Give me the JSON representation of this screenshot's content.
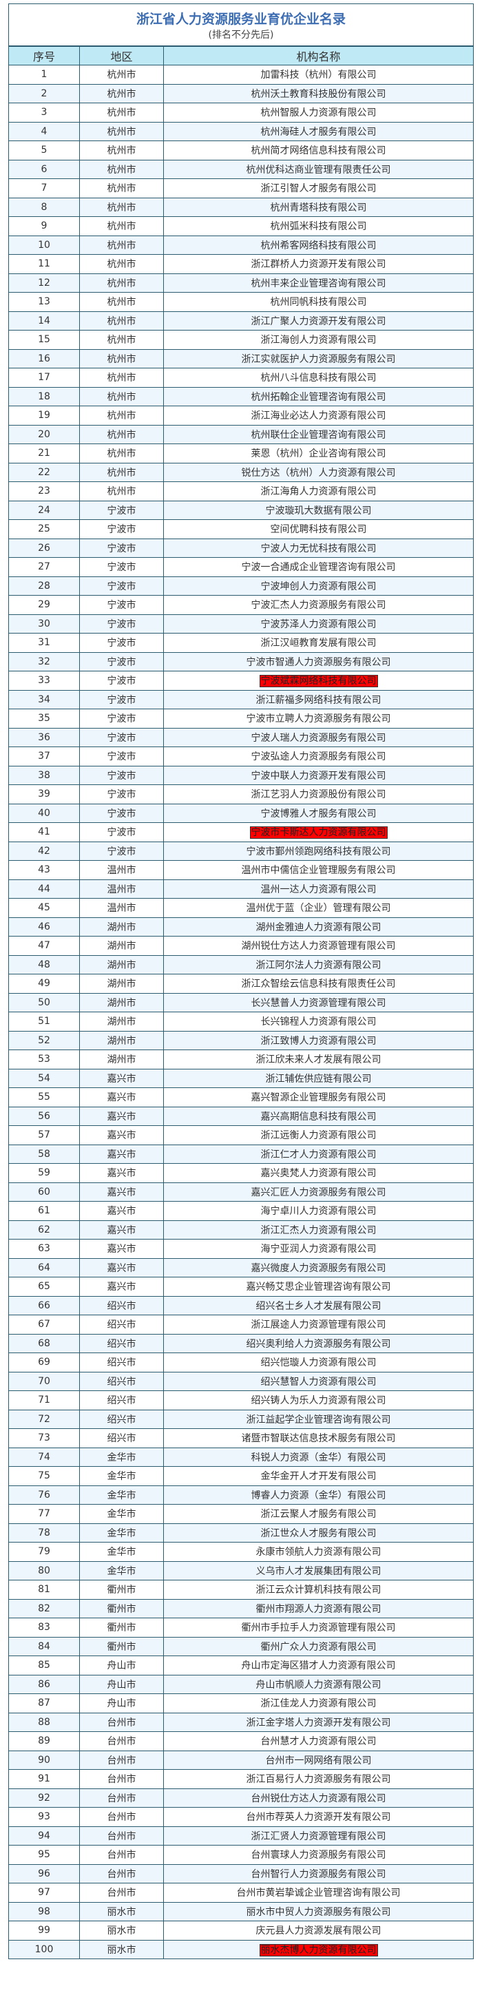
{
  "title": "浙江省人力资源服务业育优企业名录",
  "subtitle": "(排名不分先后)",
  "columns": [
    "序号",
    "地区",
    "机构名称"
  ],
  "colors": {
    "title": "#3c6db3",
    "header_bg": "#bfe9f5",
    "stripe_bg": "#eef6fd",
    "border": "#2b5b6e",
    "highlight": "#ff0000"
  },
  "highlighted_rows": [
    33,
    41,
    100
  ],
  "rows": [
    [
      "1",
      "杭州市",
      "加雷科技（杭州）有限公司"
    ],
    [
      "2",
      "杭州市",
      "杭州沃土教育科技股份有限公司"
    ],
    [
      "3",
      "杭州市",
      "杭州智服人力资源有限公司"
    ],
    [
      "4",
      "杭州市",
      "杭州海硅人才服务有限公司"
    ],
    [
      "5",
      "杭州市",
      "杭州简才网络信息科技有限公司"
    ],
    [
      "6",
      "杭州市",
      "杭州优科达商业管理有限责任公司"
    ],
    [
      "7",
      "杭州市",
      "浙江引智人才服务有限公司"
    ],
    [
      "8",
      "杭州市",
      "杭州青塔科技有限公司"
    ],
    [
      "9",
      "杭州市",
      "杭州弧米科技有限公司"
    ],
    [
      "10",
      "杭州市",
      "杭州希客网络科技有限公司"
    ],
    [
      "11",
      "杭州市",
      "浙江群桥人力资源开发有限公司"
    ],
    [
      "12",
      "杭州市",
      "杭州丰来企业管理咨询有限公司"
    ],
    [
      "13",
      "杭州市",
      "杭州同帆科技有限公司"
    ],
    [
      "14",
      "杭州市",
      "浙江广聚人力资源开发有限公司"
    ],
    [
      "15",
      "杭州市",
      "浙江海创人力资源有限公司"
    ],
    [
      "16",
      "杭州市",
      "浙江实就医护人力资源服务有限公司"
    ],
    [
      "17",
      "杭州市",
      "杭州八斗信息科技有限公司"
    ],
    [
      "18",
      "杭州市",
      "杭州拓翰企业管理咨询有限公司"
    ],
    [
      "19",
      "杭州市",
      "浙江海业必达人力资源有限公司"
    ],
    [
      "20",
      "杭州市",
      "杭州联仕企业管理咨询有限公司"
    ],
    [
      "21",
      "杭州市",
      "莱恩（杭州）企业咨询有限公司"
    ],
    [
      "22",
      "杭州市",
      "锐仕方达（杭州）人力资源有限公司"
    ],
    [
      "23",
      "杭州市",
      "浙江海角人力资源有限公司"
    ],
    [
      "24",
      "宁波市",
      "宁波璇玑大数据有限公司"
    ],
    [
      "25",
      "宁波市",
      "空间优聘科技有限公司"
    ],
    [
      "26",
      "宁波市",
      "宁波人力无忧科技有限公司"
    ],
    [
      "27",
      "宁波市",
      "宁波一合通成企业管理咨询有限公司"
    ],
    [
      "28",
      "宁波市",
      "宁波坤创人力资源有限公司"
    ],
    [
      "29",
      "宁波市",
      "宁波汇杰人力资源服务有限公司"
    ],
    [
      "30",
      "宁波市",
      "宁波苏泽人力资源有限公司"
    ],
    [
      "31",
      "宁波市",
      "浙江汉峘教育发展有限公司"
    ],
    [
      "32",
      "宁波市",
      "宁波市智通人力资源服务有限公司"
    ],
    [
      "33",
      "宁波市",
      "宁波斌霖网络科技有限公司"
    ],
    [
      "34",
      "宁波市",
      "浙江薪福多网络科技有限公司"
    ],
    [
      "35",
      "宁波市",
      "宁波市立聘人力资源服务有限公司"
    ],
    [
      "36",
      "宁波市",
      "宁波人瑞人力资源服务有限公司"
    ],
    [
      "37",
      "宁波市",
      "宁波弘途人力资源服务有限公司"
    ],
    [
      "38",
      "宁波市",
      "宁波中联人力资源开发有限公司"
    ],
    [
      "39",
      "宁波市",
      "浙江艺羽人力资源股份有限公司"
    ],
    [
      "40",
      "宁波市",
      "宁波博雅人才服务有限公司"
    ],
    [
      "41",
      "宁波市",
      "宁波市卡斯达人力资源有限公司"
    ],
    [
      "42",
      "宁波市",
      "宁波市鄞州领跑网络科技有限公司"
    ],
    [
      "43",
      "温州市",
      "温州市中儒信企业管理服务有限公司"
    ],
    [
      "44",
      "温州市",
      "温州一达人力资源有限公司"
    ],
    [
      "45",
      "温州市",
      "温州优于蓝（企业）管理有限公司"
    ],
    [
      "46",
      "湖州市",
      "湖州金雅迪人力资源有限公司"
    ],
    [
      "47",
      "湖州市",
      "湖州锐仕方达人力资源管理有限公司"
    ],
    [
      "48",
      "湖州市",
      "浙江阿尔法人力资源有限公司"
    ],
    [
      "49",
      "湖州市",
      "浙江众智绘云信息科技有限责任公司"
    ],
    [
      "50",
      "湖州市",
      "长兴慧普人力资源管理有限公司"
    ],
    [
      "51",
      "湖州市",
      "长兴锦程人力资源有限公司"
    ],
    [
      "52",
      "湖州市",
      "浙江致博人力资源有限公司"
    ],
    [
      "53",
      "湖州市",
      "浙江欣未来人才发展有限公司"
    ],
    [
      "54",
      "嘉兴市",
      "浙江辅佐供应链有限公司"
    ],
    [
      "55",
      "嘉兴市",
      "嘉兴智源企业管理服务有限公司"
    ],
    [
      "56",
      "嘉兴市",
      "嘉兴高期信息科技有限公司"
    ],
    [
      "57",
      "嘉兴市",
      "浙江远衡人力资源有限公司"
    ],
    [
      "58",
      "嘉兴市",
      "浙江仁才人力资源有限公司"
    ],
    [
      "59",
      "嘉兴市",
      "嘉兴奥梵人力资源有限公司"
    ],
    [
      "60",
      "嘉兴市",
      "嘉兴汇匠人力资源服务有限公司"
    ],
    [
      "61",
      "嘉兴市",
      "海宁卓川人力资源有限公司"
    ],
    [
      "62",
      "嘉兴市",
      "浙江汇杰人力资源有限公司"
    ],
    [
      "63",
      "嘉兴市",
      "海宁亚润人力资源有限公司"
    ],
    [
      "64",
      "嘉兴市",
      "嘉兴微度人力资源服务有限公司"
    ],
    [
      "65",
      "嘉兴市",
      "嘉兴畅艾思企业管理咨询有限公司"
    ],
    [
      "66",
      "绍兴市",
      "绍兴名士乡人才发展有限公司"
    ],
    [
      "67",
      "绍兴市",
      "浙江展途人力资源管理有限公司"
    ],
    [
      "68",
      "绍兴市",
      "绍兴奥利给人力资源服务有限公司"
    ],
    [
      "69",
      "绍兴市",
      "绍兴恺璇人力资源有限公司"
    ],
    [
      "70",
      "绍兴市",
      "绍兴慧智人力资源有限公司"
    ],
    [
      "71",
      "绍兴市",
      "绍兴铸人为乐人力资源有限公司"
    ],
    [
      "72",
      "绍兴市",
      "浙江益起学企业管理咨询有限公司"
    ],
    [
      "73",
      "绍兴市",
      "诸暨市智联达信息技术服务有限公司"
    ],
    [
      "74",
      "金华市",
      "科锐人力资源（金华）有限公司"
    ],
    [
      "75",
      "金华市",
      "金华金开人才开发有限公司"
    ],
    [
      "76",
      "金华市",
      "博睿人力资源（金华）有限公司"
    ],
    [
      "77",
      "金华市",
      "浙江云聚人才服务有限公司"
    ],
    [
      "78",
      "金华市",
      "浙江世众人才服务有限公司"
    ],
    [
      "79",
      "金华市",
      "永康市领航人力资源有限公司"
    ],
    [
      "80",
      "金华市",
      "义乌市人才发展集团有限公司"
    ],
    [
      "81",
      "衢州市",
      "浙江云众计算机科技有限公司"
    ],
    [
      "82",
      "衢州市",
      "衢州市翔源人力资源有限公司"
    ],
    [
      "83",
      "衢州市",
      "衢州市手拉手人力资源管理有限公司"
    ],
    [
      "84",
      "衢州市",
      "衢州广众人力资源有限公司"
    ],
    [
      "85",
      "舟山市",
      "舟山市定海区猎才人力资源有限公司"
    ],
    [
      "86",
      "舟山市",
      "舟山市帆顺人力资源有限公司"
    ],
    [
      "87",
      "舟山市",
      "浙江佳龙人力资源有限公司"
    ],
    [
      "88",
      "台州市",
      "浙江金字塔人力资源开发有限公司"
    ],
    [
      "89",
      "台州市",
      "台州慧才人力资源有限公司"
    ],
    [
      "90",
      "台州市",
      "台州市一网网络有限公司"
    ],
    [
      "91",
      "台州市",
      "浙江百易行人力资源服务有限公司"
    ],
    [
      "92",
      "台州市",
      "台州锐仕方达人力资源有限公司"
    ],
    [
      "93",
      "台州市",
      "台州市荐英人力资源开发有限公司"
    ],
    [
      "94",
      "台州市",
      "浙江汇贤人力资源管理有限公司"
    ],
    [
      "95",
      "台州市",
      "台州寰球人力资源服务有限公司"
    ],
    [
      "96",
      "台州市",
      "台州智行人力资源服务有限公司"
    ],
    [
      "97",
      "台州市",
      "台州市黄岩挚诚企业管理咨询有限公司"
    ],
    [
      "98",
      "丽水市",
      "丽水市中贸人力资源服务有限公司"
    ],
    [
      "99",
      "丽水市",
      "庆元县人力资源发展有限公司"
    ],
    [
      "100",
      "丽水市",
      "丽水杰博人力资源有限公司"
    ]
  ]
}
